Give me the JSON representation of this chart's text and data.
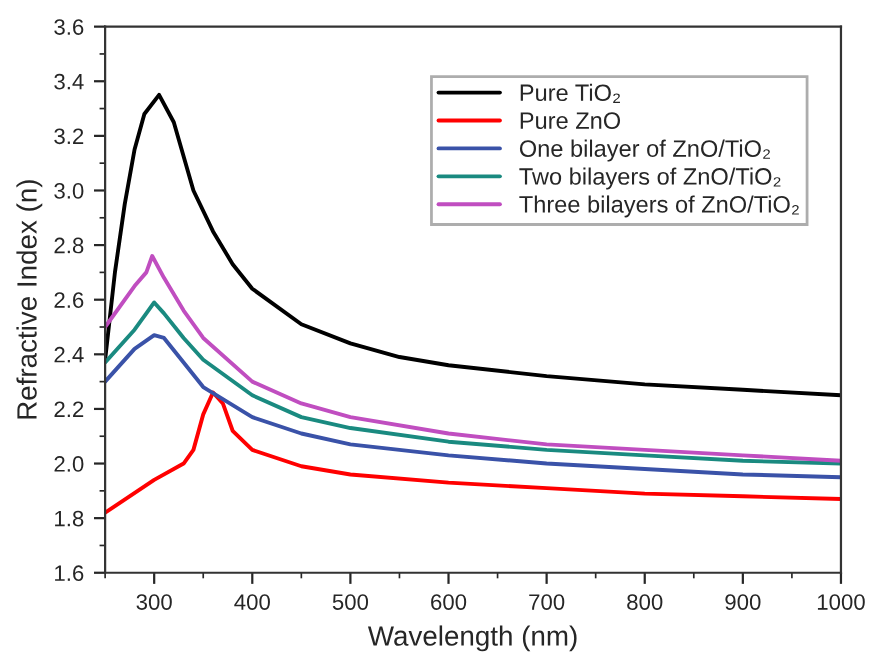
{
  "chart_data": {
    "type": "line",
    "xlabel": "Wavelength (nm)",
    "ylabel": "Refractive Index (n)",
    "xlim": [
      250,
      1000
    ],
    "xticks": [
      300,
      400,
      500,
      600,
      700,
      800,
      900,
      1000
    ],
    "ylim": [
      1.6,
      3.6
    ],
    "yticks": [
      {
        "value": 1.6,
        "label": "1.6"
      },
      {
        "value": 1.8,
        "label": "1.8"
      },
      {
        "value": 2.0,
        "label": "2.0"
      },
      {
        "value": 2.2,
        "label": "2.2"
      },
      {
        "value": 2.4,
        "label": "2.4"
      },
      {
        "value": 2.6,
        "label": "2.6"
      },
      {
        "value": 2.8,
        "label": "2.8"
      },
      {
        "value": 3.0,
        "label": "3.0"
      },
      {
        "value": 3.2,
        "label": "3.2"
      },
      {
        "value": 3.4,
        "label": "3.4"
      },
      {
        "value": 3.6,
        "label": "3.6"
      }
    ],
    "grid": false,
    "legend": "top right",
    "marker": "none",
    "line_style": "solid",
    "series": [
      {
        "name": "Pure TiO₂",
        "color": "#000000",
        "x": [
          250,
          260,
          270,
          280,
          290,
          305,
          320,
          340,
          360,
          380,
          400,
          450,
          500,
          550,
          600,
          700,
          800,
          900,
          1000
        ],
        "values": [
          2.38,
          2.7,
          2.95,
          3.15,
          3.28,
          3.35,
          3.25,
          3.0,
          2.85,
          2.73,
          2.64,
          2.51,
          2.44,
          2.39,
          2.36,
          2.32,
          2.29,
          2.27,
          2.25
        ]
      },
      {
        "name": "Pure ZnO",
        "color": "#ff0000",
        "x": [
          250,
          300,
          330,
          340,
          350,
          360,
          370,
          380,
          400,
          450,
          500,
          600,
          700,
          800,
          900,
          1000
        ],
        "values": [
          1.82,
          1.94,
          2.0,
          2.05,
          2.18,
          2.26,
          2.22,
          2.12,
          2.05,
          1.99,
          1.96,
          1.93,
          1.91,
          1.89,
          1.88,
          1.87
        ]
      },
      {
        "name": "One bilayer of ZnO/TiO₂",
        "color": "#3a52a8",
        "x": [
          250,
          280,
          300,
          310,
          330,
          350,
          400,
          450,
          500,
          600,
          700,
          800,
          900,
          1000
        ],
        "values": [
          2.3,
          2.42,
          2.47,
          2.46,
          2.37,
          2.28,
          2.17,
          2.11,
          2.07,
          2.03,
          2.0,
          1.98,
          1.96,
          1.95
        ]
      },
      {
        "name": "Two bilayers of ZnO/TiO₂",
        "color": "#1a8a80",
        "x": [
          250,
          280,
          292,
          300,
          310,
          330,
          350,
          400,
          450,
          500,
          600,
          700,
          800,
          900,
          1000
        ],
        "values": [
          2.37,
          2.49,
          2.55,
          2.59,
          2.55,
          2.46,
          2.38,
          2.25,
          2.17,
          2.13,
          2.08,
          2.05,
          2.03,
          2.01,
          2.0
        ]
      },
      {
        "name": "Three bilayers of ZnO/TiO₂",
        "color": "#c04ec0",
        "x": [
          250,
          280,
          292,
          298,
          310,
          330,
          350,
          400,
          450,
          500,
          600,
          700,
          800,
          900,
          1000
        ],
        "values": [
          2.5,
          2.65,
          2.7,
          2.76,
          2.68,
          2.56,
          2.46,
          2.3,
          2.22,
          2.17,
          2.11,
          2.07,
          2.05,
          2.03,
          2.01
        ]
      }
    ]
  }
}
